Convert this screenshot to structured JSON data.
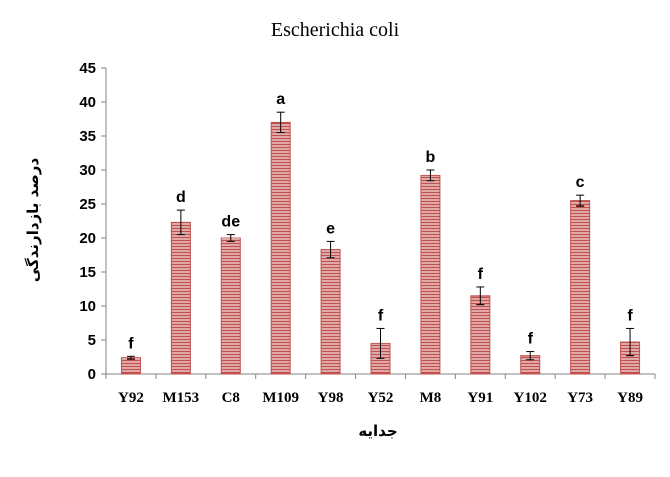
{
  "chart_data": {
    "type": "bar",
    "title": "Escherichia coli",
    "xlabel": "جدایه",
    "ylabel": "درصد بازدارندگی",
    "categories": [
      "Y92",
      "M153",
      "C8",
      "M109",
      "Y98",
      "Y52",
      "M8",
      "Y91",
      "Y102",
      "Y73",
      "Y89"
    ],
    "values": [
      2.4,
      22.3,
      20.0,
      37.0,
      18.3,
      4.5,
      29.2,
      11.5,
      2.7,
      25.5,
      4.7
    ],
    "error": [
      0.2,
      1.8,
      0.5,
      1.5,
      1.2,
      2.2,
      0.8,
      1.3,
      0.6,
      0.8,
      2.0
    ],
    "letters": [
      "f",
      "d",
      "de",
      "a",
      "e",
      "f",
      "b",
      "f",
      "f",
      "c",
      "f"
    ],
    "yticks": [
      "0",
      "5",
      "10",
      "15",
      "20",
      "25",
      "30",
      "35",
      "40",
      "45"
    ],
    "ylim": [
      0,
      45
    ],
    "grid": false,
    "legend": "none",
    "bar_color": "#c0504d",
    "bar_stripe_color": "#ffffff",
    "axis_color": "#868686"
  }
}
